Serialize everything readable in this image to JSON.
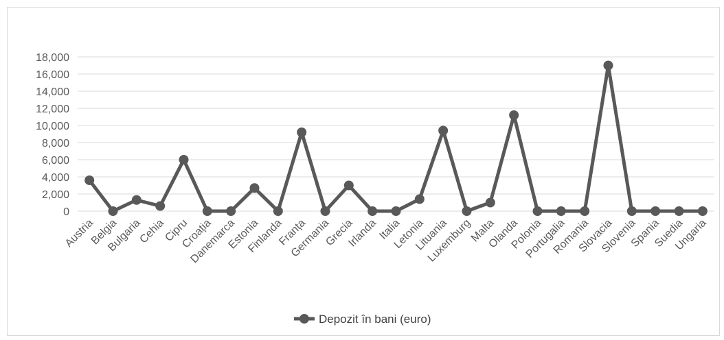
{
  "chart_data": {
    "type": "line",
    "title": "",
    "xlabel": "",
    "ylabel": "",
    "ylim": [
      0,
      18000
    ],
    "yticks": [
      0,
      2000,
      4000,
      6000,
      8000,
      10000,
      12000,
      14000,
      16000,
      18000
    ],
    "ytick_labels": [
      "0",
      "2,000",
      "4,000",
      "6,000",
      "8,000",
      "10,000",
      "12,000",
      "14,000",
      "16,000",
      "18,000"
    ],
    "grid": "horizontal",
    "legend_position": "bottom",
    "categories": [
      "Austria",
      "Belgia",
      "Bulgaria",
      "Cehia",
      "Cipru",
      "Croația",
      "Danemarca",
      "Estonia",
      "Finlanda",
      "Franța",
      "Germania",
      "Grecia",
      "Irlanda",
      "Italia",
      "Letonia",
      "Lituania",
      "Luxemburg",
      "Malta",
      "Olanda",
      "Polonia",
      "Portugalia",
      "Romania",
      "Slovacia",
      "Slovenia",
      "Spania",
      "Suedia",
      "Ungaria"
    ],
    "series": [
      {
        "name": "Depozit în bani (euro)",
        "color": "#595959",
        "values": [
          3600,
          0,
          1300,
          600,
          6000,
          0,
          0,
          2700,
          0,
          9200,
          0,
          3000,
          0,
          0,
          1400,
          9400,
          0,
          1000,
          11200,
          0,
          0,
          0,
          17000,
          0,
          0,
          0,
          0
        ]
      }
    ]
  }
}
